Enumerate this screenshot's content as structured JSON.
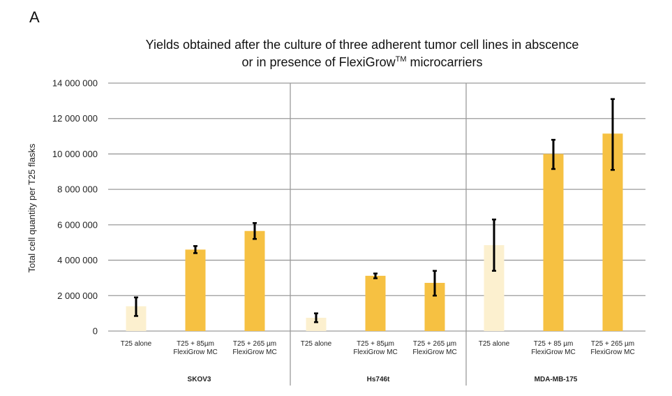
{
  "panel_label": "A",
  "chart_data": {
    "type": "bar",
    "title_line1": "Yields obtained after the culture of three adherent tumor cell lines in abscence",
    "title_line2_prefix": "or in presence of FlexiGrow",
    "title_line2_sup": "TM",
    "title_line2_suffix": " microcarriers",
    "ylabel": "Total cell quantity per T25 flasks",
    "ylim": [
      0,
      14000000
    ],
    "yticks": [
      {
        "value": 0,
        "label": "0"
      },
      {
        "value": 2000000,
        "label": "2 000 000"
      },
      {
        "value": 4000000,
        "label": "4 000 000"
      },
      {
        "value": 6000000,
        "label": "6 000 000"
      },
      {
        "value": 8000000,
        "label": "8 000 000"
      },
      {
        "value": 10000000,
        "label": "10 000 000"
      },
      {
        "value": 12000000,
        "label": "12 000 000"
      },
      {
        "value": 14000000,
        "label": "14 000 000"
      }
    ],
    "grid": true,
    "colors": {
      "alone": "#FCF0CF",
      "microcarrier": "#F6C142",
      "grid": "#9a9a9a",
      "error": "#000000"
    },
    "groups": [
      {
        "name": "SKOV3",
        "bars": [
          {
            "label": [
              "T25 alone"
            ],
            "value": 1400000,
            "err_low": 850000,
            "err_high": 1900000,
            "kind": "alone"
          },
          {
            "label": [
              "T25 + 85µm",
              "FlexiGrow MC"
            ],
            "value": 4600000,
            "err_low": 4400000,
            "err_high": 4800000,
            "kind": "microcarrier"
          },
          {
            "label": [
              "T25 + 265 µm",
              "FlexiGrow MC"
            ],
            "value": 5650000,
            "err_low": 5200000,
            "err_high": 6100000,
            "kind": "microcarrier"
          }
        ]
      },
      {
        "name": "Hs746t",
        "bars": [
          {
            "label": [
              "T25 alone"
            ],
            "value": 750000,
            "err_low": 500000,
            "err_high": 1000000,
            "kind": "alone"
          },
          {
            "label": [
              "T25 + 85µm",
              "FlexiGrow MC"
            ],
            "value": 3120000,
            "err_low": 2980000,
            "err_high": 3250000,
            "kind": "microcarrier"
          },
          {
            "label": [
              "T25 + 265 µm",
              "FlexiGrow MC"
            ],
            "value": 2720000,
            "err_low": 2000000,
            "err_high": 3400000,
            "kind": "microcarrier"
          }
        ]
      },
      {
        "name": "MDA-MB-175",
        "bars": [
          {
            "label": [
              "T25 alone"
            ],
            "value": 4850000,
            "err_low": 3400000,
            "err_high": 6300000,
            "kind": "alone"
          },
          {
            "label": [
              "T25 + 85 µm",
              "FlexiGrow MC"
            ],
            "value": 10000000,
            "err_low": 9150000,
            "err_high": 10800000,
            "kind": "microcarrier"
          },
          {
            "label": [
              "T25 + 265 µm",
              "FlexiGrow MC"
            ],
            "value": 11150000,
            "err_low": 9100000,
            "err_high": 13100000,
            "kind": "microcarrier"
          }
        ]
      }
    ]
  }
}
